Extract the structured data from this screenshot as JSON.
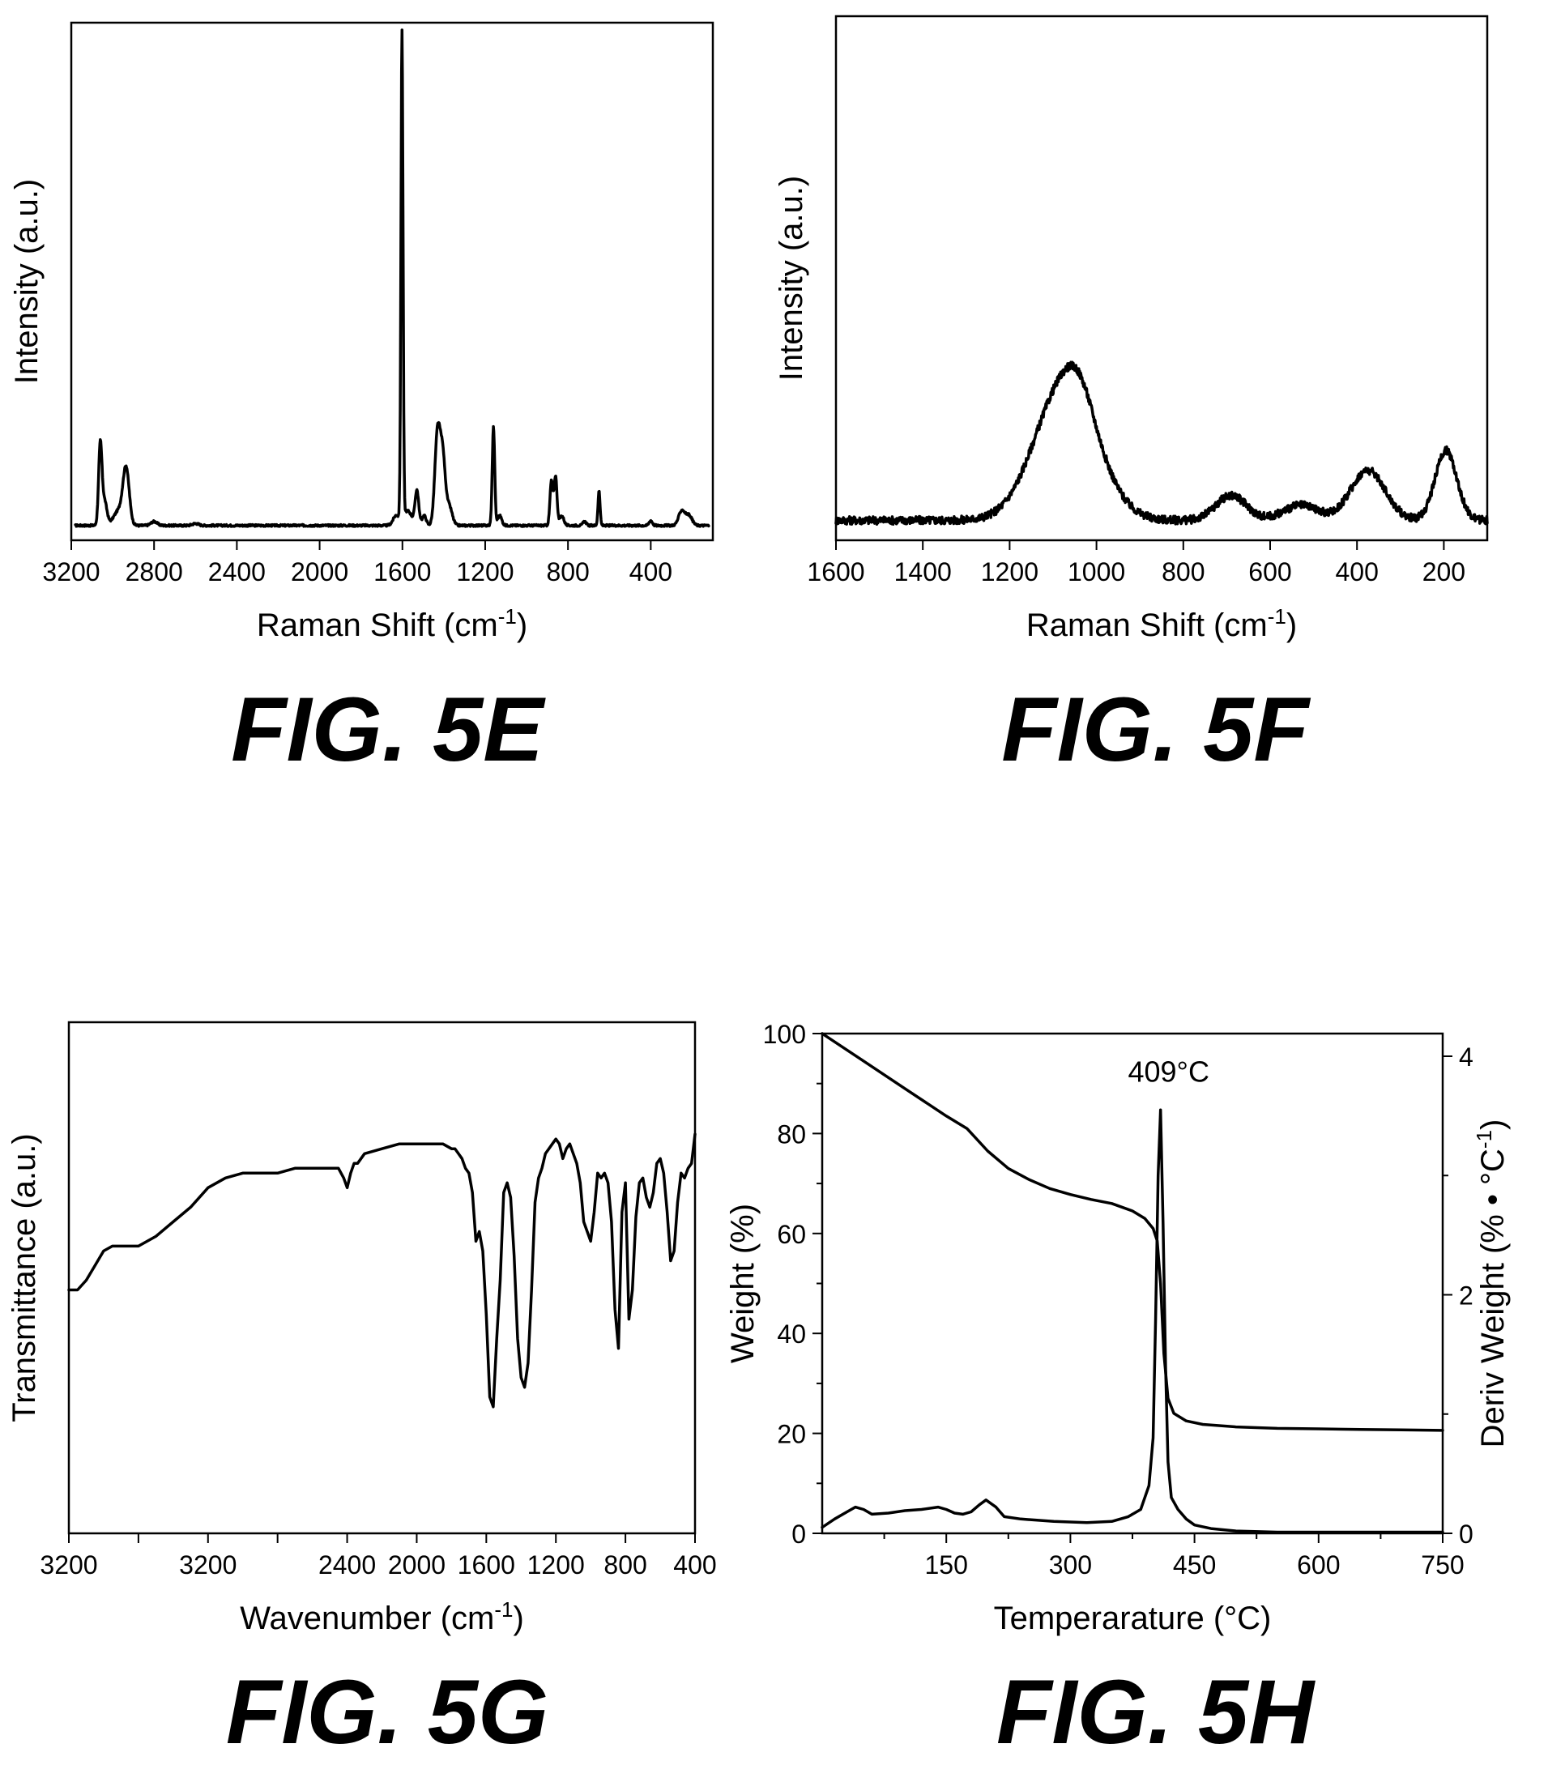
{
  "chart_data": [
    {
      "id": "5E",
      "caption": "FIG. 5E",
      "type": "line",
      "xlabel": "Raman Shift (cm⁻¹)",
      "ylabel": "Intensity (a.u.)",
      "xlim": [
        3200,
        100
      ],
      "ylim": [
        0,
        1.05
      ],
      "xticks": [
        "3200",
        "2800",
        "2400",
        "2000",
        "1600",
        "1200",
        "800",
        "400"
      ],
      "xtick_values": [
        3200,
        2800,
        2400,
        2000,
        1600,
        1200,
        800,
        400
      ],
      "grid": false,
      "series": [
        {
          "baseline": 0.03,
          "peaks": [
            [
              3060,
              0.16,
              8
            ],
            [
              3040,
              0.05,
              12
            ],
            [
              2935,
              0.11,
              15
            ],
            [
              2970,
              0.03,
              25
            ],
            [
              2800,
              0.008,
              15
            ],
            [
              2600,
              0.004,
              15
            ],
            [
              1602,
              0.99,
              5
            ],
            [
              1630,
              0.02,
              15
            ],
            [
              1575,
              0.03,
              20
            ],
            [
              1530,
              0.07,
              9
            ],
            [
              1495,
              0.02,
              10
            ],
            [
              1430,
              0.19,
              13
            ],
            [
              1405,
              0.13,
              12
            ],
            [
              1375,
              0.04,
              15
            ],
            [
              1160,
              0.2,
              6
            ],
            [
              1130,
              0.02,
              10
            ],
            [
              880,
              0.09,
              7
            ],
            [
              860,
              0.1,
              7
            ],
            [
              830,
              0.02,
              10
            ],
            [
              720,
              0.008,
              8
            ],
            [
              650,
              0.07,
              5
            ],
            [
              400,
              0.01,
              8
            ],
            [
              250,
              0.03,
              15
            ],
            [
              215,
              0.02,
              15
            ]
          ],
          "noise": 0.002,
          "x_range": [
            3180,
            120
          ]
        }
      ]
    },
    {
      "id": "5F",
      "caption": "FIG. 5F",
      "type": "line",
      "xlabel": "Raman Shift (cm⁻¹)",
      "ylabel": "Intensity (a.u.)",
      "xlim": [
        1600,
        100
      ],
      "ylim": [
        0,
        1.05
      ],
      "xticks": [
        "1600",
        "1400",
        "1200",
        "1000",
        "800",
        "600",
        "400",
        "200"
      ],
      "xtick_values": [
        1600,
        1400,
        1200,
        1000,
        800,
        600,
        400,
        200
      ],
      "grid": false,
      "series": [
        {
          "baseline": 0.04,
          "peaks": [
            [
              1070,
              0.28,
              70
            ],
            [
              1040,
              0.04,
              30
            ],
            [
              690,
              0.05,
              35
            ],
            [
              530,
              0.03,
              40
            ],
            [
              375,
              0.1,
              40
            ],
            [
              195,
              0.14,
              25
            ]
          ],
          "noise": 0.008,
          "x_range": [
            1600,
            100
          ]
        }
      ]
    },
    {
      "id": "5G",
      "caption": "FIG. 5G",
      "type": "line",
      "xlabel": "Wavenumber (cm⁻¹)",
      "ylabel": "Transmittance (a.u.)",
      "xlim": [
        4000,
        400
      ],
      "ylim": [
        0,
        1.05
      ],
      "xticks": [
        "3200",
        "3200",
        "2400",
        "2000",
        "1600",
        "1200",
        "800",
        "400"
      ],
      "xtick_values": [
        4000,
        3600,
        3200,
        2800,
        2400,
        2000,
        1600,
        1200,
        800,
        400
      ],
      "xtick_label_values": [
        4000,
        3200,
        2400,
        2000,
        1600,
        1200,
        800,
        400
      ],
      "grid": false,
      "series": [
        {
          "x": [
            4000,
            3950,
            3900,
            3850,
            3800,
            3750,
            3700,
            3600,
            3500,
            3400,
            3300,
            3200,
            3100,
            3000,
            2900,
            2800,
            2700,
            2600,
            2500,
            2450,
            2420,
            2400,
            2380,
            2360,
            2340,
            2320,
            2300,
            2200,
            2100,
            2000,
            1900,
            1850,
            1800,
            1780,
            1760,
            1740,
            1720,
            1700,
            1680,
            1660,
            1640,
            1620,
            1600,
            1580,
            1560,
            1540,
            1520,
            1500,
            1480,
            1460,
            1440,
            1420,
            1400,
            1380,
            1360,
            1340,
            1320,
            1300,
            1280,
            1260,
            1240,
            1220,
            1200,
            1180,
            1160,
            1140,
            1120,
            1100,
            1080,
            1060,
            1040,
            1020,
            1000,
            980,
            960,
            940,
            920,
            900,
            880,
            860,
            840,
            820,
            800,
            780,
            760,
            740,
            720,
            700,
            680,
            660,
            640,
            620,
            600,
            580,
            560,
            540,
            520,
            500,
            480,
            460,
            440,
            420,
            400
          ],
          "y": [
            0.5,
            0.5,
            0.52,
            0.55,
            0.58,
            0.59,
            0.59,
            0.59,
            0.61,
            0.64,
            0.67,
            0.71,
            0.73,
            0.74,
            0.74,
            0.74,
            0.75,
            0.75,
            0.75,
            0.75,
            0.73,
            0.71,
            0.74,
            0.76,
            0.76,
            0.77,
            0.78,
            0.79,
            0.8,
            0.8,
            0.8,
            0.8,
            0.79,
            0.79,
            0.78,
            0.77,
            0.75,
            0.74,
            0.7,
            0.6,
            0.62,
            0.58,
            0.45,
            0.28,
            0.26,
            0.4,
            0.52,
            0.7,
            0.72,
            0.69,
            0.57,
            0.4,
            0.32,
            0.3,
            0.35,
            0.5,
            0.68,
            0.73,
            0.75,
            0.78,
            0.79,
            0.8,
            0.81,
            0.8,
            0.77,
            0.79,
            0.8,
            0.78,
            0.76,
            0.72,
            0.64,
            0.62,
            0.6,
            0.66,
            0.74,
            0.73,
            0.74,
            0.72,
            0.64,
            0.46,
            0.38,
            0.66,
            0.72,
            0.44,
            0.5,
            0.65,
            0.72,
            0.73,
            0.69,
            0.67,
            0.7,
            0.76,
            0.77,
            0.74,
            0.66,
            0.56,
            0.58,
            0.68,
            0.74,
            0.73,
            0.75,
            0.76,
            0.82
          ]
        }
      ]
    },
    {
      "id": "5H",
      "caption": "FIG. 5H",
      "type": "line",
      "xlabel": "Temperarature (°C)",
      "ylabel": "Weight (%)",
      "y2label": "Deriv Weight (% • °C⁻¹)",
      "xlim": [
        0,
        750
      ],
      "ylim": [
        0,
        100
      ],
      "y2lim": [
        0,
        4
      ],
      "xticks": [
        "150",
        "300",
        "450",
        "600",
        "750"
      ],
      "xtick_values": [
        150,
        300,
        450,
        600,
        750
      ],
      "xtick_minor": [
        75,
        225,
        375,
        525,
        675
      ],
      "yticks": [
        "0",
        "20",
        "40",
        "60",
        "80",
        "100"
      ],
      "ytick_values": [
        0,
        20,
        40,
        60,
        80,
        100
      ],
      "y2ticks": [
        "0",
        "2",
        "4"
      ],
      "y2tick_values": [
        0,
        2,
        4
      ],
      "y2tick_minor": [
        1,
        3
      ],
      "annotation": {
        "text": "409°C",
        "x": 409,
        "y2": 3.5
      },
      "grid": false,
      "series": [
        {
          "axis": "left",
          "x": [
            0,
            50,
            100,
            150,
            175,
            200,
            225,
            250,
            275,
            300,
            325,
            350,
            375,
            390,
            400,
            405,
            409,
            413,
            418,
            425,
            440,
            460,
            500,
            550,
            600,
            650,
            700,
            750
          ],
          "y": [
            100,
            94.5,
            89,
            83.5,
            81,
            76.5,
            73,
            70.8,
            69,
            67.8,
            66.8,
            66,
            64.5,
            63,
            61,
            58.5,
            50,
            36,
            27,
            24,
            22.5,
            21.8,
            21.3,
            21,
            20.9,
            20.8,
            20.7,
            20.6
          ]
        },
        {
          "axis": "right",
          "x": [
            0,
            15,
            30,
            40,
            50,
            60,
            80,
            100,
            120,
            140,
            150,
            160,
            170,
            180,
            190,
            198,
            210,
            220,
            240,
            280,
            320,
            350,
            370,
            385,
            395,
            400,
            403,
            406,
            409,
            412,
            415,
            418,
            422,
            430,
            440,
            450,
            470,
            500,
            550,
            600,
            650,
            700,
            750
          ],
          "y": [
            0.05,
            0.12,
            0.18,
            0.22,
            0.2,
            0.16,
            0.17,
            0.19,
            0.2,
            0.22,
            0.2,
            0.17,
            0.16,
            0.18,
            0.24,
            0.28,
            0.22,
            0.14,
            0.12,
            0.1,
            0.09,
            0.1,
            0.14,
            0.2,
            0.4,
            0.8,
            1.8,
            3.0,
            3.55,
            2.6,
            1.4,
            0.6,
            0.3,
            0.2,
            0.12,
            0.07,
            0.04,
            0.02,
            0.01,
            0.01,
            0.01,
            0.01,
            0.01
          ]
        }
      ]
    }
  ]
}
